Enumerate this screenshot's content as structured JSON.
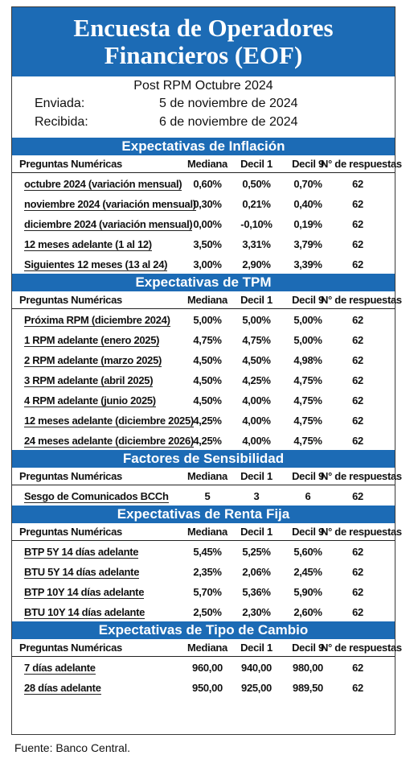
{
  "title": {
    "line1": "Encuesta de Operadores",
    "line2": "Financieros (EOF)"
  },
  "info": {
    "subtitle": "Post RPM Octubre 2024",
    "sent_label": "Enviada:",
    "sent_value": "5 de noviembre de 2024",
    "received_label": "Recibida:",
    "received_value": "6 de noviembre de 2024"
  },
  "columns": [
    "Preguntas Numéricas",
    "Mediana",
    "Decil 1",
    "Decil 9",
    "N° de respuestas"
  ],
  "sections": [
    {
      "title": "Expectativas de Inflación",
      "rows": [
        [
          "octubre 2024 (variación mensual)",
          "0,60%",
          "0,50%",
          "0,70%",
          "62"
        ],
        [
          "noviembre 2024 (variación mensual)",
          "0,30%",
          "0,21%",
          "0,40%",
          "62"
        ],
        [
          "diciembre 2024 (variación mensual)",
          "0,00%",
          "-0,10%",
          "0,19%",
          "62"
        ],
        [
          "12 meses adelante (1 al 12)",
          "3,50%",
          "3,31%",
          "3,79%",
          "62"
        ],
        [
          "Siguientes 12 meses (13 al 24)",
          "3,00%",
          "2,90%",
          "3,39%",
          "62"
        ]
      ]
    },
    {
      "title": "Expectativas de TPM",
      "rows": [
        [
          "Próxima  RPM  (diciembre 2024)",
          "5,00%",
          "5,00%",
          "5,00%",
          "62"
        ],
        [
          "1 RPM adelante  (enero 2025)",
          "4,75%",
          "4,75%",
          "5,00%",
          "62"
        ],
        [
          "2 RPM adelante  (marzo 2025)",
          "4,50%",
          "4,50%",
          "4,98%",
          "62"
        ],
        [
          "3 RPM adelante  (abril 2025)",
          "4,50%",
          "4,25%",
          "4,75%",
          "62"
        ],
        [
          "4 RPM adelante  (junio 2025)",
          "4,50%",
          "4,00%",
          "4,75%",
          "62"
        ],
        [
          "12 meses adelante  (diciembre 2025)",
          "4,25%",
          "4,00%",
          "4,75%",
          "62"
        ],
        [
          "24 meses adelante  (diciembre 2026)",
          "4,25%",
          "4,00%",
          "4,75%",
          "62"
        ]
      ]
    },
    {
      "title": "Factores de Sensibilidad",
      "rows": [
        [
          "Sesgo de Comunicados BCCh",
          "5",
          "3",
          "6",
          "62"
        ]
      ]
    },
    {
      "title": "Expectativas  de Renta Fija",
      "rows": [
        [
          "BTP 5Y 14 días adelante",
          "5,45%",
          "5,25%",
          "5,60%",
          "62"
        ],
        [
          "BTU 5Y 14 días adelante",
          "2,35%",
          "2,06%",
          "2,45%",
          "62"
        ],
        [
          "BTP 10Y 14 días adelante",
          "5,70%",
          "5,36%",
          "5,90%",
          "62"
        ],
        [
          "BTU 10Y 14 días adelante",
          "2,50%",
          "2,30%",
          "2,60%",
          "62"
        ]
      ]
    },
    {
      "title": "Expectativas  de Tipo de Cambio",
      "rows": [
        [
          "7 días adelante",
          "960,00",
          "940,00",
          "980,00",
          "62"
        ],
        [
          "28 días adelante",
          "950,00",
          "925,00",
          "989,50",
          "62"
        ]
      ]
    }
  ],
  "source": "Fuente: Banco Central.",
  "colors": {
    "accent": "#1c6bb5",
    "text": "#111111"
  }
}
